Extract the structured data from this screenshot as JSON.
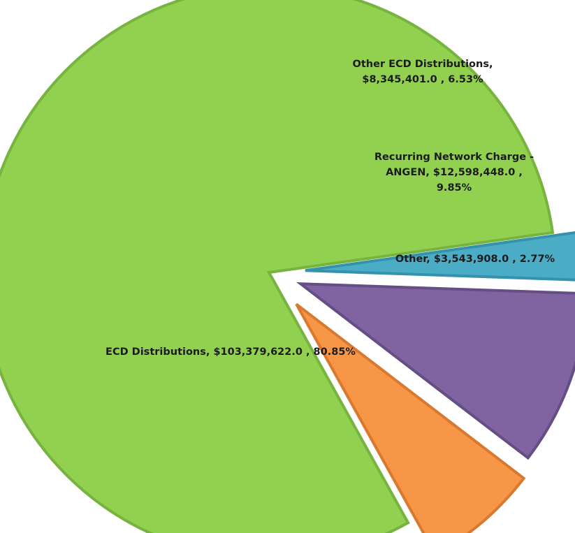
{
  "chart_data": {
    "type": "pie",
    "title": "",
    "slices": [
      {
        "label": "ECD Distributions",
        "value": 103379622.0,
        "percent": 80.85,
        "color": "#92d050",
        "border": "#77b43f",
        "label_lines": [
          "ECD Distributions,  $103,379,622.0 , 80.85%"
        ]
      },
      {
        "label": "Other ECD Distributions",
        "value": 8345401.0,
        "percent": 6.53,
        "color": "#f79646",
        "border": "#d9782f",
        "label_lines": [
          "Other ECD Distributions,",
          "$8,345,401.0 , 6.53%"
        ]
      },
      {
        "label": "Recurring Network Charge - ANGEN",
        "value": 12598448.0,
        "percent": 9.85,
        "color": "#8064a2",
        "border": "#644e84",
        "label_lines": [
          "Recurring Network Charge -",
          "ANGEN,  $12,598,448.0 ,",
          "9.85%"
        ]
      },
      {
        "label": "Other",
        "value": 3543908.0,
        "percent": 2.77,
        "color": "#4bacc6",
        "border": "#3592ac",
        "label_lines": [
          "Other,  $3,543,908.0 , 2.77%"
        ]
      }
    ],
    "start_angle_deg": 8,
    "direction": "counterclockwise",
    "exploded": true,
    "legend": "none"
  }
}
